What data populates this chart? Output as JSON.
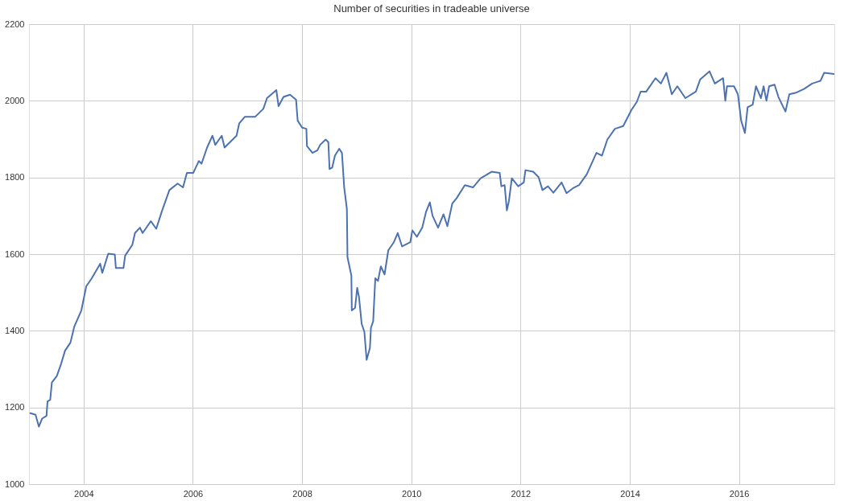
{
  "chart_data": {
    "type": "line",
    "title": "Number of securities in tradeable universe",
    "xlim": [
      "2003-01-01",
      "2017-09-30"
    ],
    "ylim": [
      1000,
      2200
    ],
    "xticks": [
      "2004",
      "2006",
      "2008",
      "2010",
      "2012",
      "2014",
      "2016"
    ],
    "yticks": [
      1000,
      1200,
      1400,
      1600,
      1800,
      2000,
      2200
    ],
    "grid": true,
    "line_style": "solid",
    "series": [
      {
        "color": "#4c72b0",
        "x": [
          "2003-01-10",
          "2003-02-14",
          "2003-03-08",
          "2003-03-30",
          "2003-04-28",
          "2003-05-05",
          "2003-05-23",
          "2003-06-03",
          "2003-07-06",
          "2003-08-04",
          "2003-08-30",
          "2003-10-05",
          "2003-10-31",
          "2003-12-17",
          "2004-01-19",
          "2004-02-25",
          "2004-04-21",
          "2004-05-05",
          "2004-06-14",
          "2004-07-28",
          "2004-08-04",
          "2004-09-24",
          "2004-10-05",
          "2004-11-22",
          "2004-12-10",
          "2005-01-12",
          "2005-01-30",
          "2005-03-26",
          "2005-05-01",
          "2005-06-07",
          "2005-07-28",
          "2005-09-21",
          "2005-10-27",
          "2005-11-22",
          "2006-01-04",
          "2006-02-10",
          "2006-02-28",
          "2006-04-06",
          "2006-05-12",
          "2006-05-31",
          "2006-07-13",
          "2006-08-01",
          "2006-10-20",
          "2006-11-07",
          "2006-12-14",
          "2007-02-21",
          "2007-04-17",
          "2007-05-12",
          "2007-07-13",
          "2007-07-28",
          "2007-08-30",
          "2007-10-13",
          "2007-11-22",
          "2007-12-03",
          "2008-01-02",
          "2008-01-30",
          "2008-02-03",
          "2008-03-11",
          "2008-04-13",
          "2008-05-01",
          "2008-06-07",
          "2008-06-25",
          "2008-07-03",
          "2008-07-21",
          "2008-08-08",
          "2008-09-06",
          "2008-09-24",
          "2008-10-09",
          "2008-10-27",
          "2008-10-31",
          "2008-11-26",
          "2008-11-29",
          "2008-12-21",
          "2009-01-04",
          "2009-01-16",
          "2009-02-03",
          "2009-02-21",
          "2009-03-08",
          "2009-03-30",
          "2009-04-06",
          "2009-04-21",
          "2009-05-05",
          "2009-05-23",
          "2009-06-11",
          "2009-07-06",
          "2009-07-31",
          "2009-09-06",
          "2009-10-02",
          "2009-10-31",
          "2009-12-25",
          "2010-01-08",
          "2010-02-07",
          "2010-03-15",
          "2010-04-10",
          "2010-05-05",
          "2010-05-23",
          "2010-06-29",
          "2010-08-04",
          "2010-08-30",
          "2010-10-02",
          "2010-10-31",
          "2010-12-25",
          "2011-02-17",
          "2011-04-10",
          "2011-06-22",
          "2011-08-15",
          "2011-08-26",
          "2011-09-17",
          "2011-10-02",
          "2011-10-16",
          "2011-11-04",
          "2011-12-17",
          "2012-01-23",
          "2012-02-03",
          "2012-03-26",
          "2012-05-01",
          "2012-05-27",
          "2012-07-03",
          "2012-08-08",
          "2012-10-02",
          "2012-11-04",
          "2012-12-21",
          "2013-01-27",
          "2013-03-19",
          "2013-05-23",
          "2013-06-29",
          "2013-08-04",
          "2013-09-24",
          "2013-11-18",
          "2014-01-12",
          "2014-02-17",
          "2014-03-15",
          "2014-04-21",
          "2014-06-22",
          "2014-07-28",
          "2014-09-03",
          "2014-10-09",
          "2014-11-15",
          "2015-01-08",
          "2015-03-19",
          "2015-04-17",
          "2015-06-18",
          "2015-07-24",
          "2015-09-17",
          "2015-10-02",
          "2015-10-13",
          "2015-11-29",
          "2015-12-25",
          "2016-01-16",
          "2016-02-10",
          "2016-02-28",
          "2016-04-02",
          "2016-04-24",
          "2016-05-27",
          "2016-06-14",
          "2016-07-03",
          "2016-07-21",
          "2016-08-26",
          "2016-09-21",
          "2016-11-07",
          "2016-12-03",
          "2017-01-16",
          "2017-03-11",
          "2017-05-05",
          "2017-06-29",
          "2017-07-24",
          "2017-09-28"
        ],
        "values": [
          1185,
          1181,
          1150,
          1171,
          1178,
          1216,
          1220,
          1265,
          1282,
          1314,
          1348,
          1369,
          1411,
          1453,
          1516,
          1537,
          1575,
          1551,
          1601,
          1599,
          1564,
          1564,
          1596,
          1624,
          1655,
          1669,
          1655,
          1686,
          1666,
          1711,
          1767,
          1784,
          1774,
          1812,
          1812,
          1843,
          1836,
          1878,
          1909,
          1885,
          1909,
          1878,
          1909,
          1941,
          1958,
          1958,
          1979,
          2007,
          2028,
          1986,
          2010,
          2016,
          2003,
          1948,
          1930,
          1927,
          1882,
          1864,
          1871,
          1885,
          1899,
          1892,
          1822,
          1826,
          1857,
          1875,
          1864,
          1774,
          1718,
          1592,
          1544,
          1453,
          1460,
          1512,
          1488,
          1418,
          1397,
          1324,
          1355,
          1408,
          1425,
          1537,
          1530,
          1568,
          1547,
          1610,
          1631,
          1655,
          1620,
          1631,
          1662,
          1645,
          1669,
          1711,
          1735,
          1700,
          1669,
          1704,
          1673,
          1732,
          1746,
          1780,
          1774,
          1798,
          1815,
          1812,
          1777,
          1780,
          1714,
          1739,
          1798,
          1777,
          1787,
          1819,
          1815,
          1801,
          1767,
          1777,
          1760,
          1787,
          1759,
          1773,
          1780,
          1808,
          1864,
          1857,
          1899,
          1927,
          1934,
          1976,
          1997,
          2024,
          2024,
          2059,
          2045,
          2073,
          2017,
          2038,
          2007,
          2024,
          2056,
          2077,
          2045,
          2059,
          2000,
          2038,
          2038,
          2017,
          1948,
          1916,
          1983,
          1990,
          2038,
          2007,
          2038,
          2000,
          2038,
          2042,
          2010,
          1972,
          2017,
          2021,
          2031,
          2045,
          2052,
          2073,
          2070
        ]
      }
    ]
  }
}
